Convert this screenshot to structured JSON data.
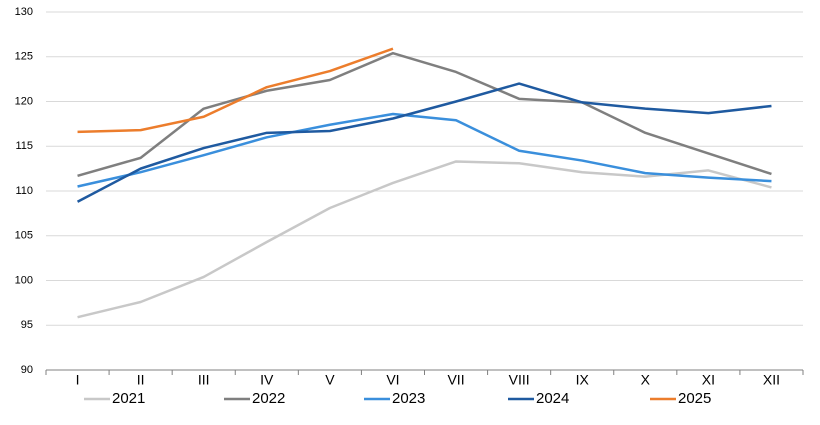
{
  "chart_data": {
    "type": "line",
    "categories": [
      "I",
      "II",
      "III",
      "IV",
      "V",
      "VI",
      "VII",
      "VIII",
      "IX",
      "X",
      "XI",
      "XII"
    ],
    "series": [
      {
        "name": "2021",
        "color": "#c8c8c8",
        "values": [
          95.9,
          97.6,
          100.4,
          104.3,
          108.1,
          110.9,
          113.3,
          113.1,
          112.1,
          111.6,
          112.3,
          110.4
        ]
      },
      {
        "name": "2022",
        "color": "#7f7f7f",
        "values": [
          111.7,
          113.7,
          119.2,
          121.2,
          122.4,
          125.4,
          123.3,
          120.3,
          119.9,
          116.5,
          114.2,
          111.9
        ]
      },
      {
        "name": "2023",
        "color": "#3a8fdc",
        "values": [
          110.5,
          112.1,
          114.0,
          116.0,
          117.4,
          118.6,
          117.9,
          114.5,
          113.4,
          112.0,
          111.5,
          111.1
        ]
      },
      {
        "name": "2024",
        "color": "#1f5aa0",
        "values": [
          108.8,
          112.5,
          114.8,
          116.5,
          116.7,
          118.1,
          120.0,
          122.0,
          119.9,
          119.2,
          118.7,
          119.5
        ]
      },
      {
        "name": "2025",
        "color": "#ec7d2c",
        "values": [
          116.6,
          116.8,
          118.3,
          121.6,
          123.4,
          125.9,
          null,
          null,
          null,
          null,
          null,
          null
        ]
      }
    ],
    "ylim": [
      90,
      130
    ],
    "yticks": [
      90,
      95,
      100,
      105,
      110,
      115,
      120,
      125,
      130
    ],
    "grid": true,
    "legend": "bottom"
  }
}
